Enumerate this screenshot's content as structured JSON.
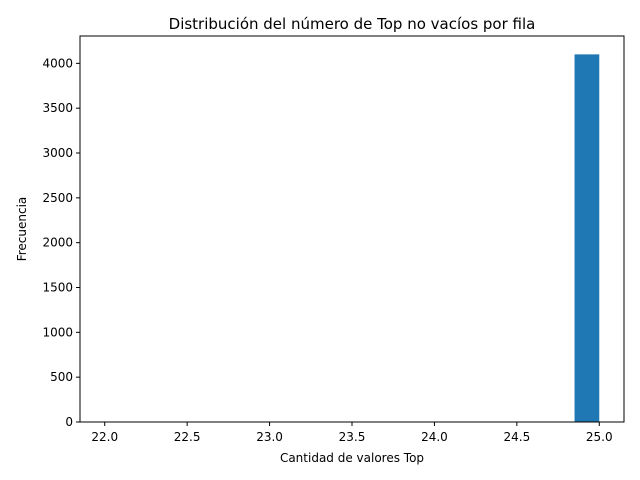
{
  "chart_data": {
    "type": "bar",
    "title": "Distribución del número de Top no vacíos por fila",
    "xlabel": "Cantidad de valores Top",
    "ylabel": "Frecuencia",
    "xlim": [
      21.85,
      25.15
    ],
    "ylim": [
      0,
      4305
    ],
    "xticks": [
      22.0,
      22.5,
      23.0,
      23.5,
      24.0,
      24.5,
      25.0
    ],
    "xtick_labels": [
      "22.0",
      "22.5",
      "23.0",
      "23.5",
      "24.0",
      "24.5",
      "25.0"
    ],
    "yticks": [
      0,
      500,
      1000,
      1500,
      2000,
      2500,
      3000,
      3500,
      4000
    ],
    "ytick_labels": [
      "0",
      "500",
      "1000",
      "1500",
      "2000",
      "2500",
      "3000",
      "3500",
      "4000"
    ],
    "bins": [
      {
        "x0": 22.0,
        "x1": 22.15,
        "value": 0
      },
      {
        "x0": 22.15,
        "x1": 22.3,
        "value": 0
      },
      {
        "x0": 22.3,
        "x1": 22.45,
        "value": 0
      },
      {
        "x0": 22.45,
        "x1": 22.6,
        "value": 0
      },
      {
        "x0": 22.6,
        "x1": 22.75,
        "value": 0
      },
      {
        "x0": 22.75,
        "x1": 22.9,
        "value": 0
      },
      {
        "x0": 22.9,
        "x1": 23.05,
        "value": 0
      },
      {
        "x0": 23.05,
        "x1": 23.2,
        "value": 0
      },
      {
        "x0": 23.2,
        "x1": 23.35,
        "value": 0
      },
      {
        "x0": 23.35,
        "x1": 23.5,
        "value": 0
      },
      {
        "x0": 23.5,
        "x1": 23.65,
        "value": 0
      },
      {
        "x0": 23.65,
        "x1": 23.8,
        "value": 0
      },
      {
        "x0": 23.8,
        "x1": 23.95,
        "value": 0
      },
      {
        "x0": 23.95,
        "x1": 24.1,
        "value": 0
      },
      {
        "x0": 24.1,
        "x1": 24.25,
        "value": 0
      },
      {
        "x0": 24.25,
        "x1": 24.4,
        "value": 0
      },
      {
        "x0": 24.4,
        "x1": 24.55,
        "value": 0
      },
      {
        "x0": 24.55,
        "x1": 24.7,
        "value": 0
      },
      {
        "x0": 24.7,
        "x1": 24.85,
        "value": 0
      },
      {
        "x0": 24.85,
        "x1": 25.0,
        "value": 4100
      }
    ],
    "bar_color": "#1f77b4",
    "grid": false,
    "legend": "none"
  }
}
